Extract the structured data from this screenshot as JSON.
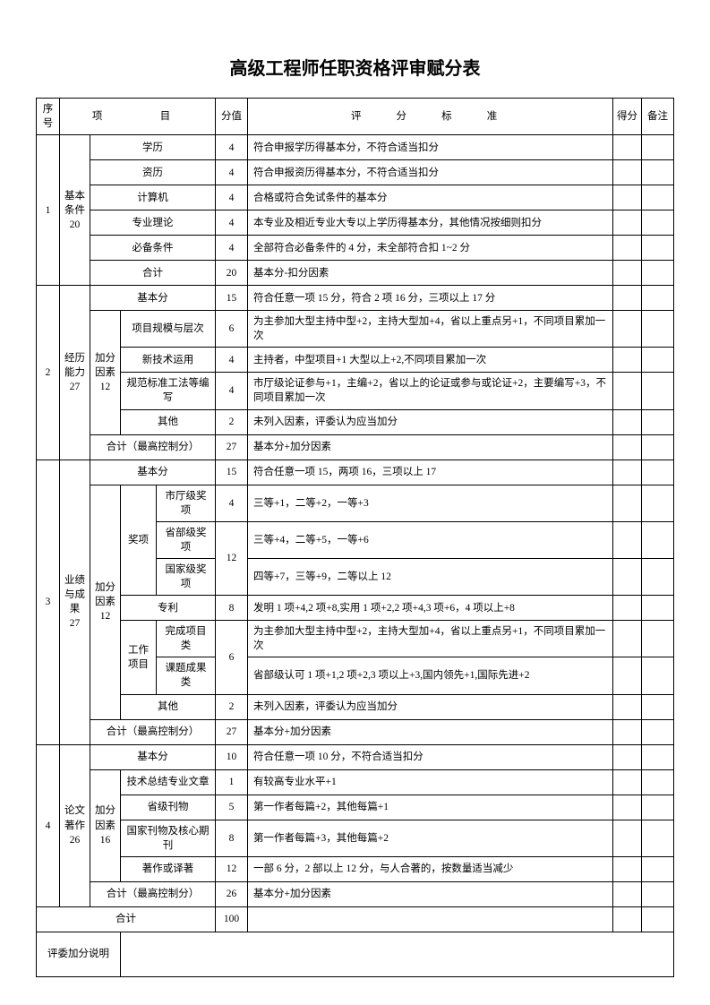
{
  "title": "高级工程师任职资格评审赋分表",
  "header": {
    "seq": "序号",
    "project": "项　　目",
    "score": "分值",
    "criteria": "评　分　标　准",
    "got": "得分",
    "note": "备注"
  },
  "section1": {
    "seq": "1",
    "name": "基本条件20",
    "rows": [
      {
        "item": "学历",
        "score": "4",
        "criteria": "符合申报学历得基本分，不符合适当扣分"
      },
      {
        "item": "资历",
        "score": "4",
        "criteria": "符合申报资历得基本分，不符合适当扣分"
      },
      {
        "item": "计算机",
        "score": "4",
        "criteria": "合格或符合免试条件的基本分"
      },
      {
        "item": "专业理论",
        "score": "4",
        "criteria": "本专业及相近专业大专以上学历得基本分，其他情况按细则扣分"
      },
      {
        "item": "必备条件",
        "score": "4",
        "criteria": "全部符合必备条件的 4 分，未全部符合扣 1~2 分"
      },
      {
        "item": "合计",
        "score": "20",
        "criteria": "基本分-扣分因素"
      }
    ]
  },
  "section2": {
    "seq": "2",
    "name": "经历能力27",
    "base": {
      "item": "基本分",
      "score": "15",
      "criteria": "符合任意一项 15 分，符合 2 项 16 分，三项以上 17 分"
    },
    "bonus_label": "加分因素12",
    "bonus_rows": [
      {
        "item": "项目规模与层次",
        "score": "6",
        "criteria": "为主参加大型主持中型+2，主持大型加+4，省以上重点另+1，不同项目累加一次"
      },
      {
        "item": "新技术运用",
        "score": "4",
        "criteria": "主持者，中型项目+1 大型以上+2,不同项目累加一次"
      },
      {
        "item": "规范标准工法等编写",
        "score": "4",
        "criteria": "市厅级论证参与+1，主编+2，省以上的论证或参与或论证+2，主要编写+3，不同项目累加一次"
      },
      {
        "item": "其他",
        "score": "2",
        "criteria": "未列入因素，评委认为应当加分"
      }
    ],
    "subtotal": {
      "item": "合计（最高控制分）",
      "score": "27",
      "criteria": "基本分+加分因素"
    }
  },
  "section3": {
    "seq": "3",
    "name": "业绩与成果 27",
    "base": {
      "item": "基本分",
      "score": "15",
      "criteria": "符合任意一项 15，两项 16，三项以上 17"
    },
    "bonus_label": "加分因素12",
    "award_label": "奖项",
    "award_rows": [
      {
        "item": "市厅级奖项",
        "score": "4",
        "criteria": "三等+1，二等+2，一等+3"
      },
      {
        "item": "省部级奖项",
        "score_merged": "12",
        "criteria": "三等+4，二等+5，一等+6"
      },
      {
        "item": "国家级奖项",
        "criteria": "四等+7，三等+9，二等以上 12"
      }
    ],
    "patent": {
      "item": "专利",
      "score": "8",
      "criteria": "发明 1 项+4,2 项+8,实用 1 项+2,2 项+4,3 项+6，4 项以上+8"
    },
    "work_label": "工作项目",
    "work_rows": [
      {
        "item": "完成项目类",
        "score_merged": "6",
        "criteria": "为主参加大型主持中型+2，主持大型加+4，省以上重点另+1，不同项目累加一次"
      },
      {
        "item": "课题成果类",
        "criteria": "省部级认可 1 项+1,2 项+2,3 项以上+3,国内领先+1,国际先进+2"
      }
    ],
    "other": {
      "item": "其他",
      "score": "2",
      "criteria": "未列入因素，评委认为应当加分"
    },
    "subtotal": {
      "item": "合计（最高控制分）",
      "score": "27",
      "criteria": "基本分+加分因素"
    }
  },
  "section4": {
    "seq": "4",
    "name": "论文著作26",
    "base": {
      "item": "基本分",
      "score": "10",
      "criteria": "符合任意一项 10 分，不符合适当扣分"
    },
    "bonus_label": "加分因素16",
    "bonus_rows": [
      {
        "item": "技术总结专业文章",
        "score": "1",
        "criteria": "有较高专业水平+1"
      },
      {
        "item": "省级刊物",
        "score": "5",
        "criteria": "第一作者每篇+2，其他每篇+1"
      },
      {
        "item": "国家刊物及核心期刊",
        "score": "8",
        "criteria": "第一作者每篇+3，其他每篇+2"
      },
      {
        "item": "著作或译著",
        "score": "12",
        "criteria": "一部 6 分，2 部以上 12 分，与人合著的，按数量适当减少"
      }
    ],
    "subtotal": {
      "item": "合计（最高控制分）",
      "score": "26",
      "criteria": "基本分+加分因素"
    }
  },
  "total": {
    "label": "合计",
    "score": "100"
  },
  "note_label": "评委加分说明"
}
